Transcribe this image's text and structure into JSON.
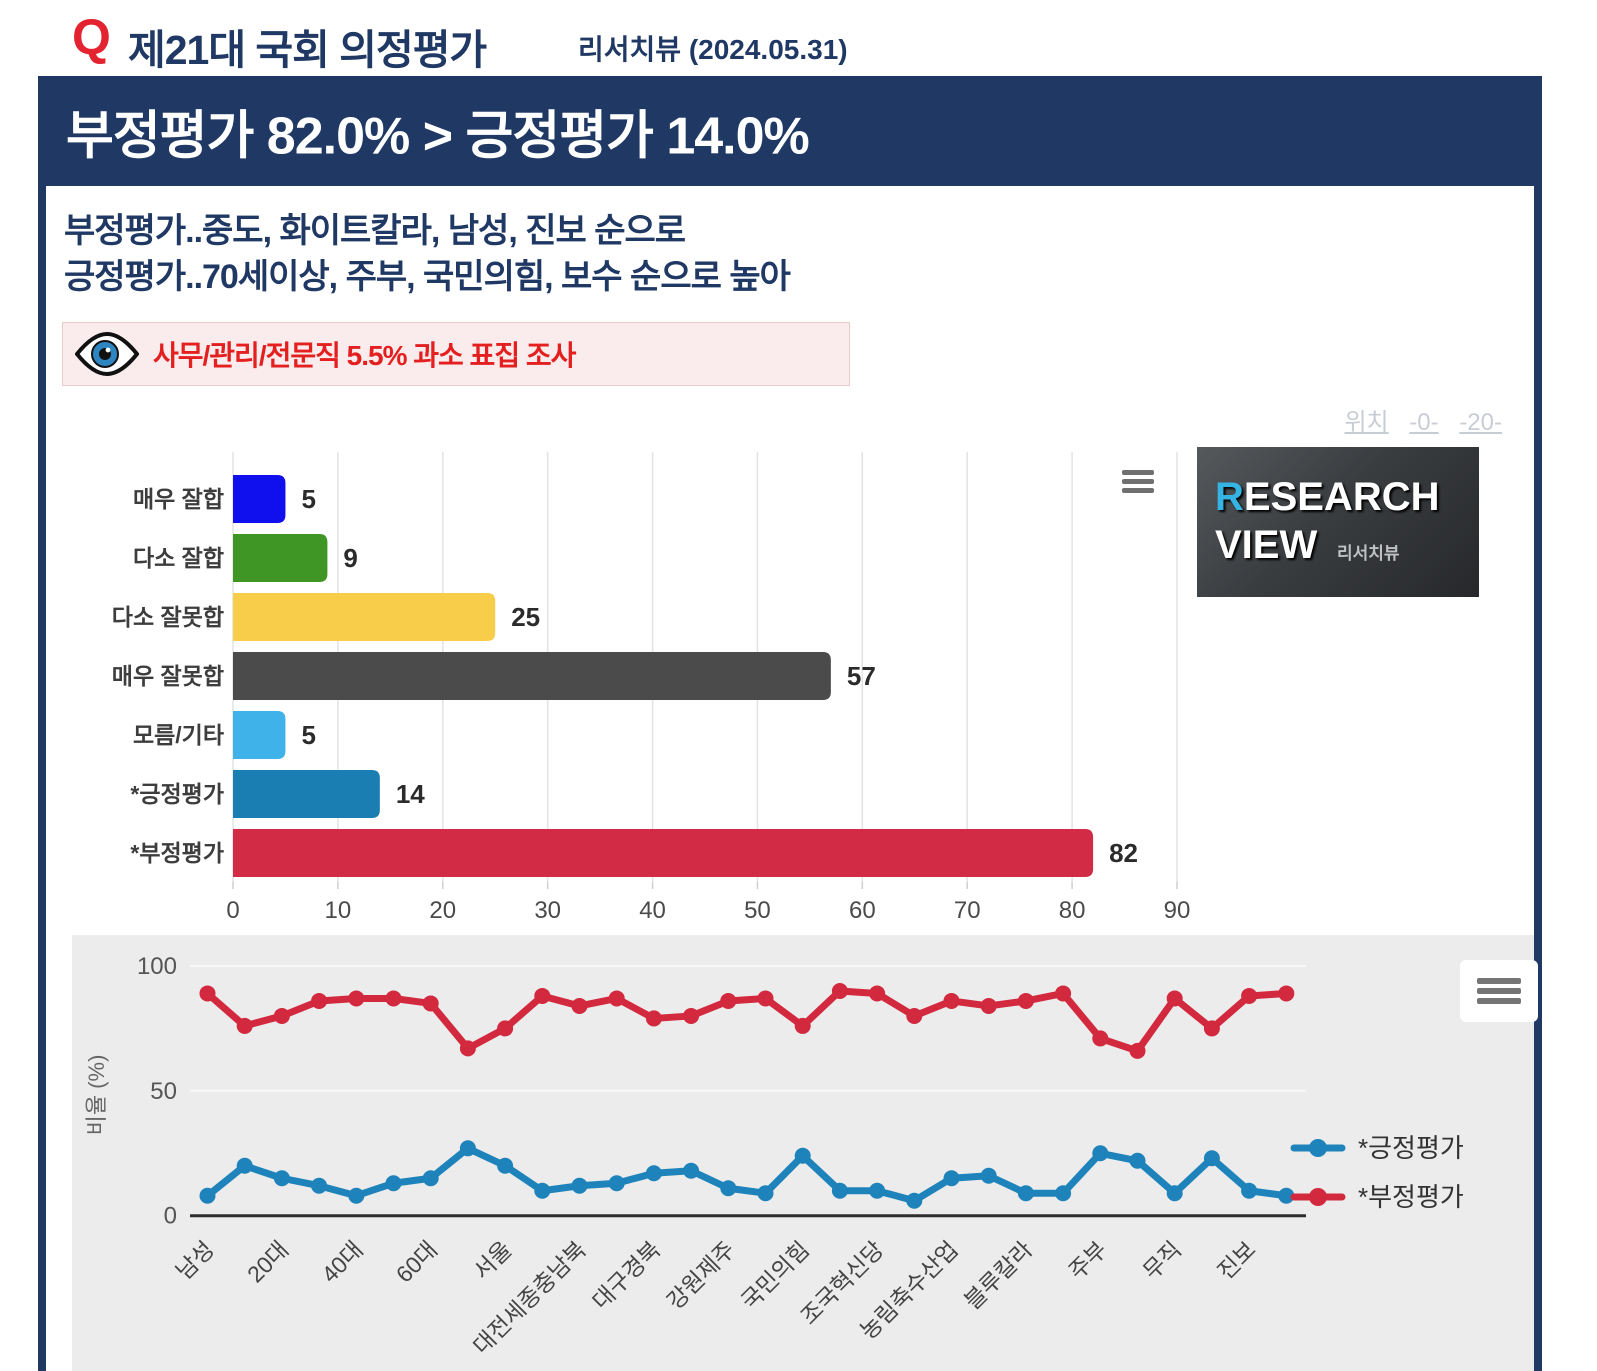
{
  "header": {
    "q": "Q",
    "title": "제21대 국회 의정평가",
    "source": "리서치뷰 (2024.05.31)"
  },
  "banner": {
    "text": "부정평가 82.0% > 긍정평가 14.0%"
  },
  "subtitle": {
    "line1": "부정평가..중도, 화이트칼라, 남성, 진보 순으로",
    "line2": "긍정평가..70세이상, 주부, 국민의힘, 보수 순으로 높아"
  },
  "notice": {
    "text": "사무/관리/전문직 5.5% 과소 표집 조사"
  },
  "position_links": {
    "label": "위치",
    "links": [
      "-0-",
      "-20-"
    ]
  },
  "logo": {
    "r": "R",
    "rest": "ESEARCH",
    "line2": "VIEW",
    "sub": "리서치뷰"
  },
  "colors": {
    "navy": "#1f3864",
    "accent_red": "#e32330",
    "notice_bg": "#faecec",
    "panel_gray": "#ececec",
    "positive_blue": "#1e83ba",
    "negative_red": "#d2293e"
  },
  "chart_data": [
    {
      "type": "bar",
      "orientation": "horizontal",
      "title": "",
      "categories": [
        "매우 잘합",
        "다소 잘합",
        "다소 잘못합",
        "매우 잘못합",
        "모름/기타",
        "*긍정평가",
        "*부정평가"
      ],
      "values": [
        5,
        9,
        25,
        57,
        5,
        14,
        82
      ],
      "bar_colors": [
        "#1010ee",
        "#3f9624",
        "#f7cd4a",
        "#4b4b4b",
        "#3eb2e9",
        "#1b7eb3",
        "#d22b46"
      ],
      "xlim": [
        0,
        90
      ],
      "xticks": [
        0,
        10,
        20,
        30,
        40,
        50,
        60,
        70,
        80,
        90
      ],
      "grid": true,
      "value_labels": true
    },
    {
      "type": "line",
      "title": "",
      "ylabel": "비율 (%)",
      "ylim": [
        0,
        100
      ],
      "yticks": [
        0,
        50,
        100
      ],
      "n_points": 30,
      "x_label_step": 2,
      "x_labels": [
        "남성",
        "20대",
        "40대",
        "60대",
        "서울",
        "대전세종충남북",
        "대구경북",
        "강원제주",
        "국민의힘",
        "조국혁신당",
        "농림축수산업",
        "블루칼라",
        "주부",
        "무직",
        "진보"
      ],
      "legend_position": "right",
      "grid": true,
      "series": [
        {
          "name": "*긍정평가",
          "color": "#1e83ba",
          "values": [
            8,
            20,
            15,
            12,
            8,
            13,
            15,
            27,
            20,
            10,
            12,
            13,
            17,
            18,
            11,
            9,
            24,
            10,
            10,
            6,
            15,
            16,
            9,
            9,
            25,
            22,
            9,
            23,
            10,
            8
          ]
        },
        {
          "name": "*부정평가",
          "color": "#d2293e",
          "values": [
            89,
            76,
            80,
            86,
            87,
            87,
            85,
            67,
            75,
            88,
            84,
            87,
            79,
            80,
            86,
            87,
            76,
            90,
            89,
            80,
            86,
            84,
            86,
            89,
            71,
            66,
            87,
            75,
            88,
            89
          ]
        }
      ]
    }
  ]
}
